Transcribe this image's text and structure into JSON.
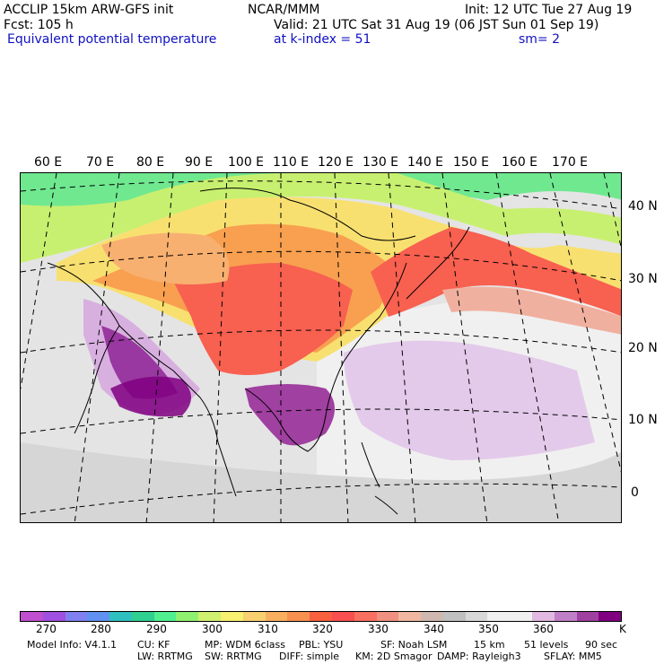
{
  "header": {
    "model": "ACCLIP 15km ARW-GFS init",
    "org": "NCAR/MMM",
    "init": "Init: 12 UTC Tue 27 Aug 19",
    "fcst": "Fcst:  105 h",
    "valid": "Valid: 21 UTC Sat 31 Aug 19 (06 JST Sun 01 Sep 19)",
    "field": "Equivalent potential temperature",
    "level": "at k-index =  51",
    "smooth": "sm= 2"
  },
  "map": {
    "lon_labels": [
      "60 E",
      "70 E",
      "80 E",
      "90 E",
      "100 E",
      "110 E",
      "120 E",
      "130 E",
      "140 E",
      "150 E",
      "160 E",
      "170 E"
    ],
    "lat_labels": [
      "40 N",
      "30 N",
      "20 N",
      "10 N",
      "0"
    ]
  },
  "colorbar": {
    "colors": [
      "#c050d0",
      "#a050e0",
      "#8080f0",
      "#6090f0",
      "#30c0c0",
      "#30d090",
      "#50f090",
      "#90f070",
      "#d0f070",
      "#f8f070",
      "#f8d070",
      "#f8b060",
      "#f89050",
      "#f86040",
      "#f85050",
      "#f87060",
      "#f09080",
      "#f0b8a0",
      "#d0b8b0",
      "#c0c0c0",
      "#d8d8d8",
      "#f0f0f0",
      "#f0f0f0",
      "#e0b8e0",
      "#c080c8",
      "#a040a0",
      "#800080"
    ],
    "ticks": [
      "270",
      "280",
      "290",
      "300",
      "310",
      "320",
      "330",
      "340",
      "350",
      "360"
    ],
    "unit": "K"
  },
  "footer": {
    "line1": [
      "Model Info: V4.1.1",
      "CU: KF",
      "MP: WDM 6class",
      "PBL: YSU",
      "SF: Noah LSM",
      "15 km",
      "51 levels",
      "90 sec"
    ],
    "line2": [
      "LW: RRTMG",
      "SW: RRTMG",
      "DIFF: simple",
      "KM: 2D Smagor",
      "DAMP: Rayleigh3",
      "SFLAY: MM5"
    ]
  }
}
